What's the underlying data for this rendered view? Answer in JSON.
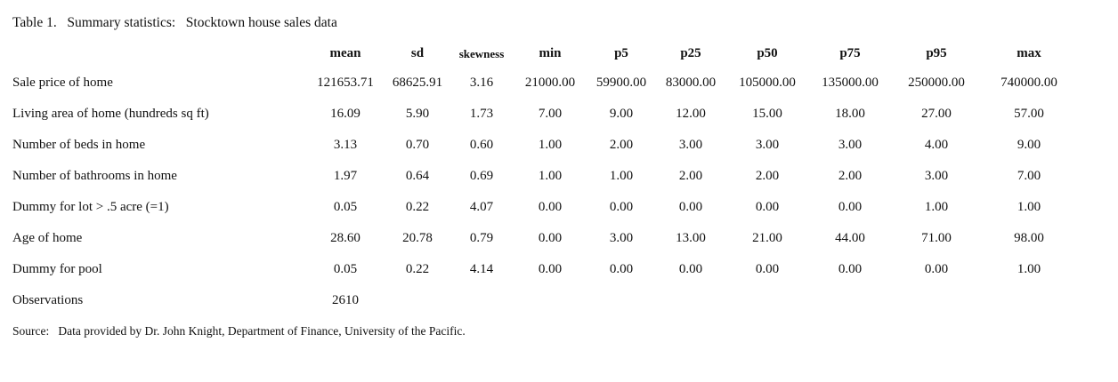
{
  "title": "Table 1.   Summary statistics:   Stocktown house sales data",
  "source": "Source:   Data provided by Dr. John Knight, Department of Finance, University of the Pacific.",
  "chart_data": {
    "type": "table",
    "title": "Table 1. Summary statistics: Stocktown house sales data",
    "columns": [
      "",
      "mean",
      "sd",
      "skewness",
      "min",
      "p5",
      "p25",
      "p50",
      "p75",
      "p95",
      "max"
    ],
    "rows": [
      {
        "label": "Sale price of home",
        "values": [
          "121653.71",
          "68625.91",
          "3.16",
          "21000.00",
          "59900.00",
          "83000.00",
          "105000.00",
          "135000.00",
          "250000.00",
          "740000.00"
        ]
      },
      {
        "label": "Living area of home (hundreds sq ft)",
        "values": [
          "16.09",
          "5.90",
          "1.73",
          "7.00",
          "9.00",
          "12.00",
          "15.00",
          "18.00",
          "27.00",
          "57.00"
        ]
      },
      {
        "label": "Number of beds in home",
        "values": [
          "3.13",
          "0.70",
          "0.60",
          "1.00",
          "2.00",
          "3.00",
          "3.00",
          "3.00",
          "4.00",
          "9.00"
        ]
      },
      {
        "label": "Number of bathrooms in home",
        "values": [
          "1.97",
          "0.64",
          "0.69",
          "1.00",
          "1.00",
          "2.00",
          "2.00",
          "2.00",
          "3.00",
          "7.00"
        ]
      },
      {
        "label": "Dummy for lot > .5 acre (=1)",
        "values": [
          "0.05",
          "0.22",
          "4.07",
          "0.00",
          "0.00",
          "0.00",
          "0.00",
          "0.00",
          "1.00",
          "1.00"
        ]
      },
      {
        "label": "Age of home",
        "values": [
          "28.60",
          "20.78",
          "0.79",
          "0.00",
          "3.00",
          "13.00",
          "21.00",
          "44.00",
          "71.00",
          "98.00"
        ]
      },
      {
        "label": "Dummy for pool",
        "values": [
          "0.05",
          "0.22",
          "4.14",
          "0.00",
          "0.00",
          "0.00",
          "0.00",
          "0.00",
          "0.00",
          "1.00"
        ]
      },
      {
        "label": "Observations",
        "values": [
          "2610"
        ]
      }
    ]
  }
}
